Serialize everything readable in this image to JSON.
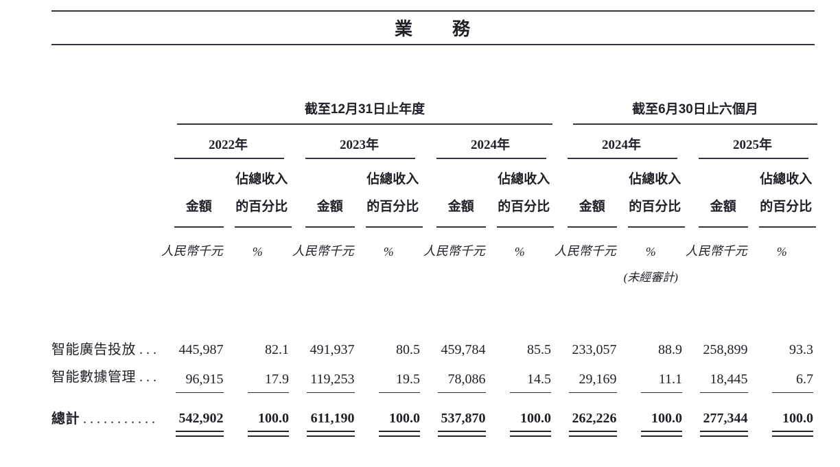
{
  "page_title": "業　　務",
  "table": {
    "groups": [
      {
        "label": "截至12月31日止年度",
        "years": [
          "2022年",
          "2023年",
          "2024年"
        ]
      },
      {
        "label": "截至6月30日止六個月",
        "years": [
          "2024年",
          "2025年"
        ]
      }
    ],
    "headers": {
      "amount": "金額",
      "pct_line1": "佔總收入",
      "pct_line2": "的百分比",
      "amount_unit": "人民幣千元",
      "pct_unit": "%",
      "unaudited": "(未經審計)"
    },
    "rows": [
      {
        "label": "智能廣告投放",
        "leader": "....",
        "values": [
          "445,987",
          "82.1",
          "491,937",
          "80.5",
          "459,784",
          "85.5",
          "233,057",
          "88.9",
          "258,899",
          "93.3"
        ]
      },
      {
        "label": "智能數據管理",
        "leader": "....",
        "values": [
          "96,915",
          "17.9",
          "119,253",
          "19.5",
          "78,086",
          "14.5",
          "29,169",
          "11.1",
          "18,445",
          "6.7"
        ]
      }
    ],
    "total": {
      "label": "總計",
      "leader": "...........",
      "values": [
        "542,902",
        "100.0",
        "611,190",
        "100.0",
        "537,870",
        "100.0",
        "262,226",
        "100.0",
        "277,344",
        "100.0"
      ]
    }
  }
}
